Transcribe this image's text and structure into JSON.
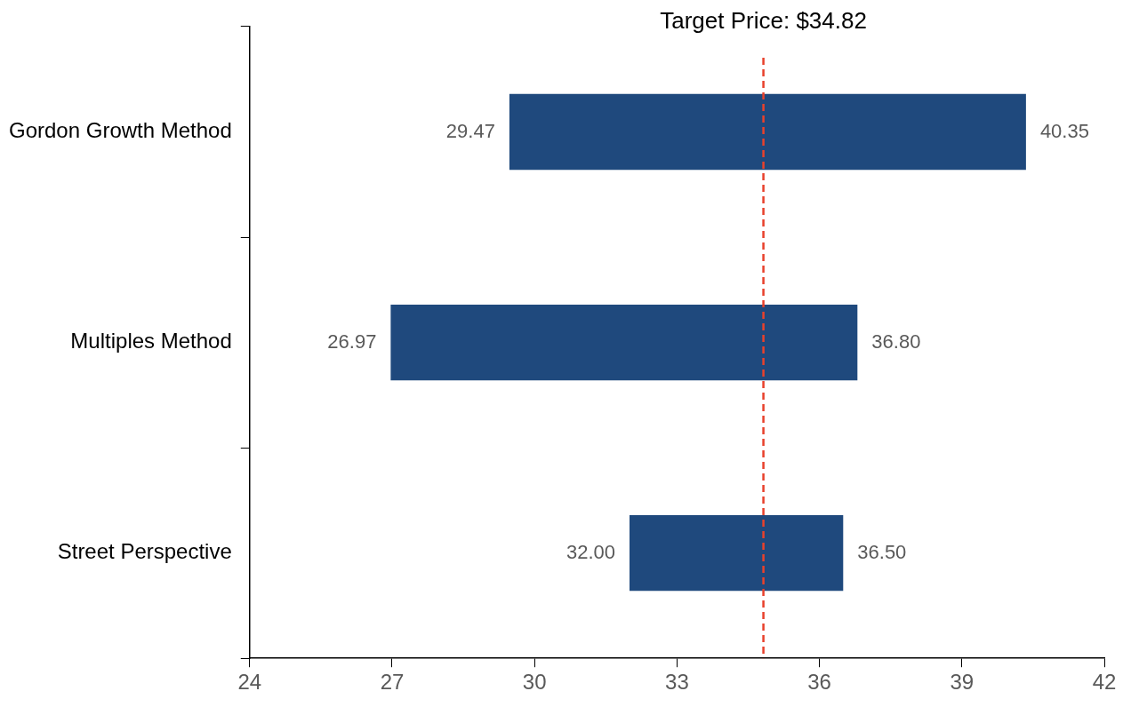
{
  "chart_data": {
    "type": "bar",
    "orientation": "horizontal",
    "categories": [
      "Gordon Growth Method",
      "Multiples Method",
      "Street Perspective"
    ],
    "base": [
      29.47,
      26.97,
      32.0
    ],
    "values": [
      10.88,
      9.83,
      4.5
    ],
    "value_labels": [
      "40.35",
      "36.80",
      "36.50"
    ],
    "color": "#1f497d",
    "xlim": [
      24,
      42
    ],
    "xticks": [
      24,
      27,
      30,
      33,
      36,
      39,
      42
    ],
    "annotations": [
      {
        "text": "29.47",
        "x": 29.47,
        "y": "Gordon Growth Method"
      },
      {
        "text": "26.97",
        "x": 26.97,
        "y": "Multiples Method"
      },
      {
        "text": "32.00",
        "x": 32.0,
        "y": "Street Perspective"
      }
    ],
    "ref_lines": [
      {
        "axis": "x",
        "value": 34.82,
        "label": "Target Price: $34.82",
        "color": "#e8412c",
        "line_style": "dashed"
      }
    ]
  }
}
